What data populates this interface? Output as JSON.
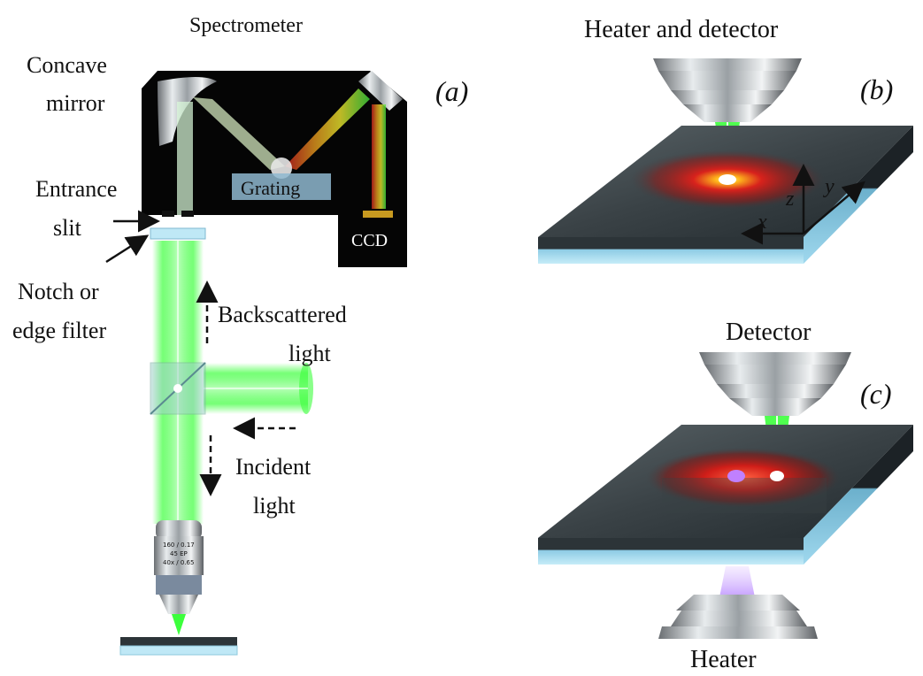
{
  "panel_a": {
    "letter": "(a)",
    "spectrometer": "Spectrometer",
    "concave_mirror_1": "Concave",
    "concave_mirror_2": "mirror",
    "grating": "Grating",
    "ccd": "CCD",
    "entrance_slit_1": "Entrance",
    "entrance_slit_2": "slit",
    "filter_1": "Notch or",
    "filter_2": "edge filter",
    "backscattered_1": "Backscattered",
    "backscattered_2": "light",
    "incident_1": "Incident",
    "incident_2": "light",
    "objective_line1": "160 / 0.17",
    "objective_line2": "45 EP",
    "objective_line3": "40x / 0.65"
  },
  "panel_b": {
    "letter": "(b)",
    "title": "Heater and detector",
    "axis_x": "x",
    "axis_y": "y",
    "axis_z": "z"
  },
  "panel_c": {
    "letter": "(c)",
    "detector": "Detector",
    "heater": "Heater"
  },
  "colors": {
    "laser_green": "#3cff3c",
    "heat_red": "#e0201a",
    "heater_violet": "#9b5cff",
    "substrate_blue": "#a8dcef",
    "slab_dark": "#2c3438"
  }
}
